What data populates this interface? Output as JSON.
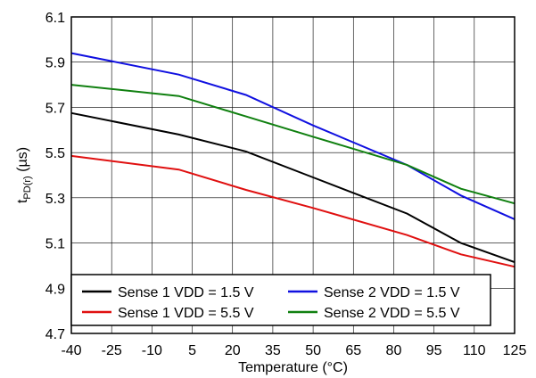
{
  "chart_data": {
    "type": "line",
    "xlabel": "Temperature (°C)",
    "ylabel": "t",
    "ylabel_subscript": "PD(r)",
    "ylabel_suffix": " (µs)",
    "xlim": [
      -40,
      125
    ],
    "ylim": [
      4.7,
      6.1
    ],
    "x_ticks": [
      "-40",
      "-25",
      "-10",
      "5",
      "20",
      "35",
      "50",
      "65",
      "80",
      "95",
      "110",
      "125"
    ],
    "y_ticks": [
      "4.7",
      "4.9",
      "5.1",
      "5.3",
      "5.5",
      "5.7",
      "5.9",
      "6.1"
    ],
    "grid": true,
    "legend_placement": "bottom",
    "series": [
      {
        "name": "Sense 1 VDD = 1.5 V",
        "color": "#000000",
        "x": [
          -40,
          0,
          25,
          50,
          85,
          105,
          125
        ],
        "y": [
          5.675,
          5.58,
          5.505,
          5.39,
          5.23,
          5.1,
          5.015
        ]
      },
      {
        "name": "Sense 2 VDD = 1.5 V",
        "color": "#1010e0",
        "x": [
          -40,
          0,
          25,
          50,
          85,
          105,
          125
        ],
        "y": [
          5.94,
          5.845,
          5.755,
          5.62,
          5.445,
          5.31,
          5.205
        ]
      },
      {
        "name": "Sense 1 VDD = 5.5 V",
        "color": "#e01010",
        "x": [
          -40,
          0,
          25,
          50,
          85,
          105,
          125
        ],
        "y": [
          5.485,
          5.425,
          5.335,
          5.255,
          5.135,
          5.05,
          4.995
        ]
      },
      {
        "name": "Sense 2 VDD = 5.5 V",
        "color": "#108010",
        "x": [
          -40,
          0,
          25,
          50,
          85,
          105,
          125
        ],
        "y": [
          5.8,
          5.75,
          5.66,
          5.57,
          5.445,
          5.34,
          5.275
        ]
      }
    ]
  }
}
